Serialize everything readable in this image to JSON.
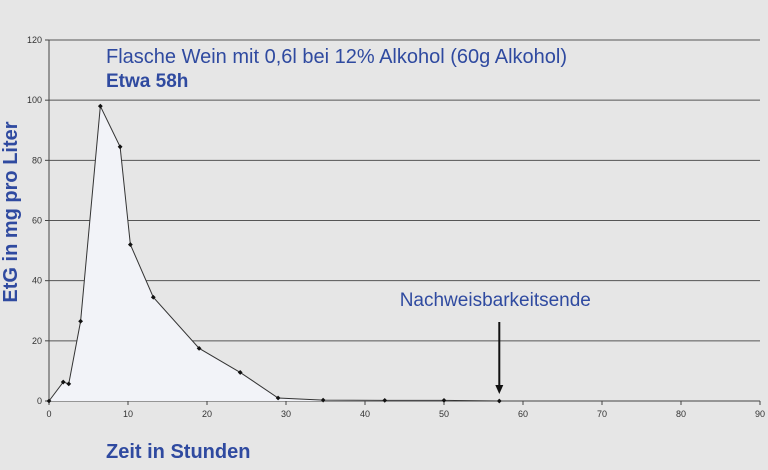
{
  "chart_data": {
    "type": "line",
    "title": "Flasche Wein mit 0,6l bei 12% Alkohol (60g Alkohol)",
    "subtitle": "Etwa 58h",
    "xlabel": "Zeit in Stunden",
    "ylabel": "EtG in mg pro Liter",
    "xlim": [
      0,
      90
    ],
    "ylim": [
      0,
      120
    ],
    "x_ticks": [
      0,
      10,
      20,
      30,
      40,
      50,
      60,
      70,
      80,
      90
    ],
    "y_ticks": [
      0,
      20,
      40,
      60,
      80,
      100,
      120
    ],
    "grid": "horizontal",
    "series": [
      {
        "x": [
          0,
          1.8,
          2.5,
          4,
          6.5,
          9,
          10.3,
          13.2,
          19,
          24.2,
          29,
          34.7,
          42.5,
          50,
          57
        ],
        "y": [
          0,
          6.3,
          5.7,
          26.5,
          98,
          84.5,
          52,
          34.5,
          17.5,
          9.5,
          1,
          0.3,
          0.2,
          0.2,
          0
        ]
      }
    ],
    "annotation": {
      "text": "Nachweisbarkeitsende",
      "x": 57,
      "arrow": true
    },
    "colors": {
      "background": "#e6e6e6",
      "line": "#333333",
      "fill": "#f2f3f8",
      "text": "#2f4aa0",
      "grid": "#555555"
    }
  }
}
